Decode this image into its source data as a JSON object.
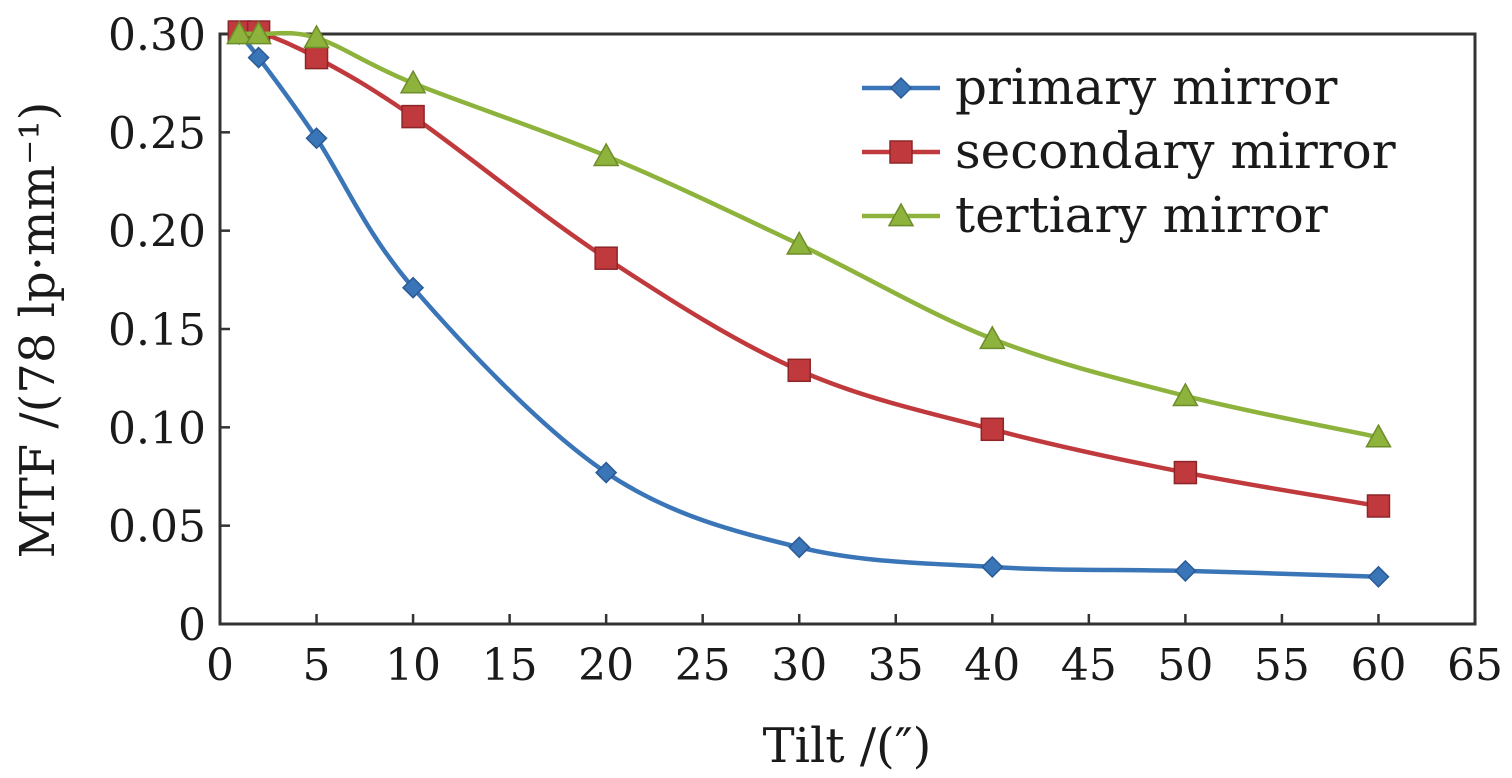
{
  "chart_data": {
    "type": "line",
    "title": "",
    "xlabel": "Tilt /(″)",
    "ylabel": "MTF /(78 lp·mm⁻¹)",
    "xlim": [
      0,
      65
    ],
    "ylim": [
      0,
      0.3
    ],
    "x_ticks": [
      "0",
      "5",
      "10",
      "15",
      "20",
      "25",
      "30",
      "35",
      "40",
      "45",
      "50",
      "55",
      "60",
      "65"
    ],
    "y_ticks": [
      "0",
      "0.05",
      "0.10",
      "0.15",
      "0.20",
      "0.25",
      "0.30"
    ],
    "x": [
      1,
      2,
      5,
      10,
      20,
      30,
      40,
      50,
      60
    ],
    "series": [
      {
        "name": "primary mirror",
        "marker": "diamond",
        "color": "#3a75b8",
        "values": [
          0.3,
          0.288,
          0.247,
          0.171,
          0.077,
          0.039,
          0.029,
          0.027,
          0.024
        ]
      },
      {
        "name": "secondary mirror",
        "marker": "square",
        "color": "#c0393c",
        "values": [
          0.301,
          0.301,
          0.288,
          0.258,
          0.186,
          0.129,
          0.099,
          0.077,
          0.06
        ]
      },
      {
        "name": "tertiary mirror",
        "marker": "triangle",
        "color": "#8db33c",
        "values": [
          0.3,
          0.3,
          0.298,
          0.275,
          0.238,
          0.193,
          0.145,
          0.116,
          0.095
        ]
      }
    ],
    "legend_position": "top-right",
    "grid": false
  }
}
